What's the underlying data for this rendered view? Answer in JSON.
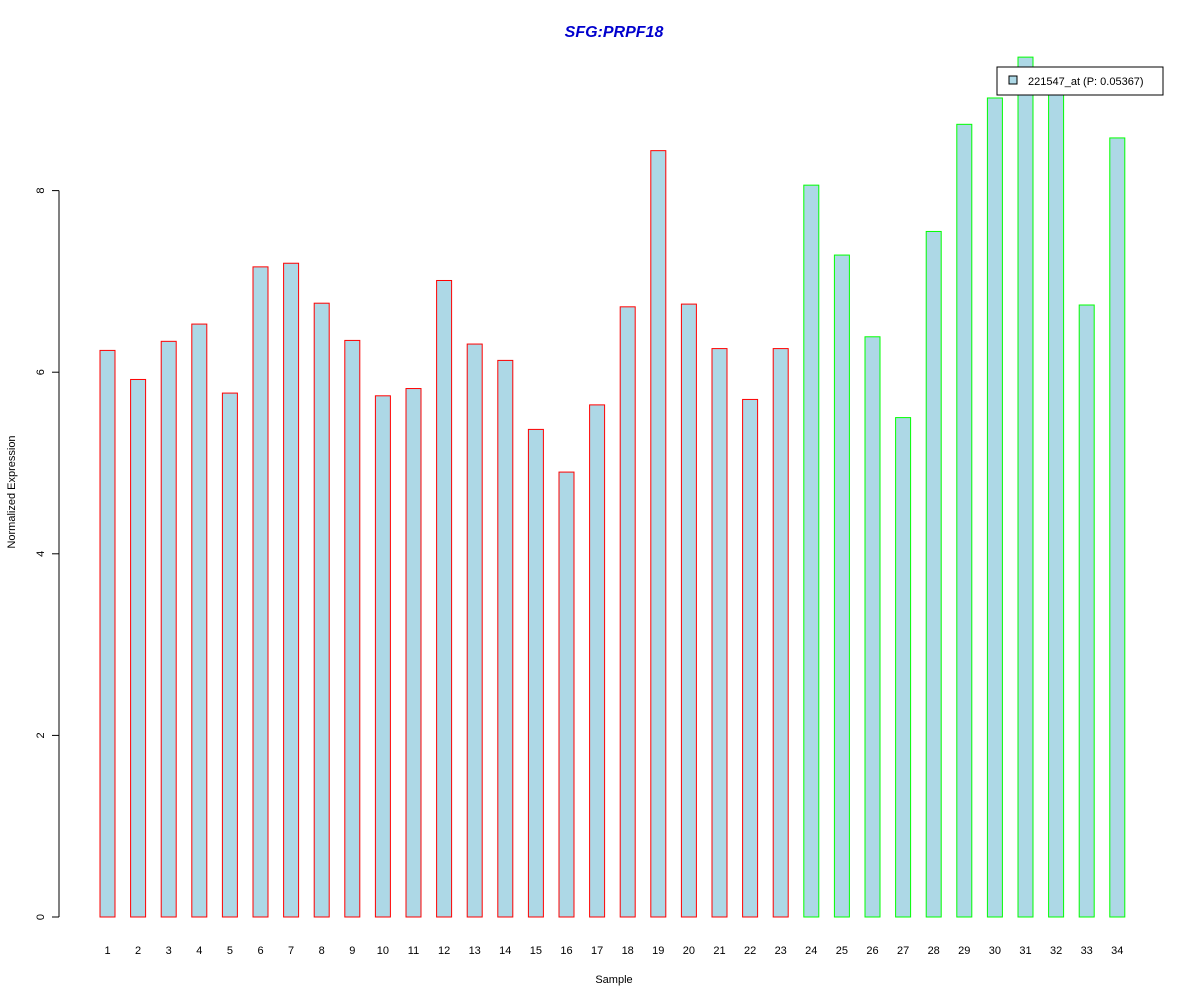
{
  "chart_data": {
    "type": "bar",
    "title": "SFG:PRPF18",
    "xlabel": "Sample",
    "ylabel": "Normalized Expression",
    "ylim": [
      0,
      9.5
    ],
    "yticks": [
      0,
      2,
      4,
      6,
      8
    ],
    "categories": [
      "1",
      "2",
      "3",
      "4",
      "5",
      "6",
      "7",
      "8",
      "9",
      "10",
      "11",
      "12",
      "13",
      "14",
      "15",
      "16",
      "17",
      "18",
      "19",
      "20",
      "21",
      "22",
      "23",
      "24",
      "25",
      "26",
      "27",
      "28",
      "29",
      "30",
      "31",
      "32",
      "33",
      "34"
    ],
    "series": [
      {
        "name": "221547_at (P: 0.05367)",
        "values": [
          6.24,
          5.92,
          6.34,
          6.53,
          5.77,
          7.16,
          7.2,
          6.76,
          6.35,
          5.74,
          5.82,
          7.01,
          6.31,
          6.13,
          5.37,
          4.9,
          5.64,
          6.72,
          8.44,
          6.75,
          6.26,
          5.7,
          6.26,
          8.06,
          7.29,
          6.39,
          5.5,
          7.55,
          8.73,
          9.02,
          9.47,
          9.1,
          6.74,
          8.58
        ],
        "fill": "#add8e6"
      }
    ],
    "border_colors": [
      "#ff0000",
      "#ff0000",
      "#ff0000",
      "#ff0000",
      "#ff0000",
      "#ff0000",
      "#ff0000",
      "#ff0000",
      "#ff0000",
      "#ff0000",
      "#ff0000",
      "#ff0000",
      "#ff0000",
      "#ff0000",
      "#ff0000",
      "#ff0000",
      "#ff0000",
      "#ff0000",
      "#ff0000",
      "#ff0000",
      "#ff0000",
      "#ff0000",
      "#ff0000",
      "#00ff00",
      "#00ff00",
      "#00ff00",
      "#00ff00",
      "#00ff00",
      "#00ff00",
      "#00ff00",
      "#00ff00",
      "#00ff00",
      "#00ff00",
      "#00ff00"
    ],
    "title_color": "#0000cd",
    "legend": {
      "label": "221547_at (P: 0.05367)",
      "position": "top-right"
    },
    "grid": false
  }
}
